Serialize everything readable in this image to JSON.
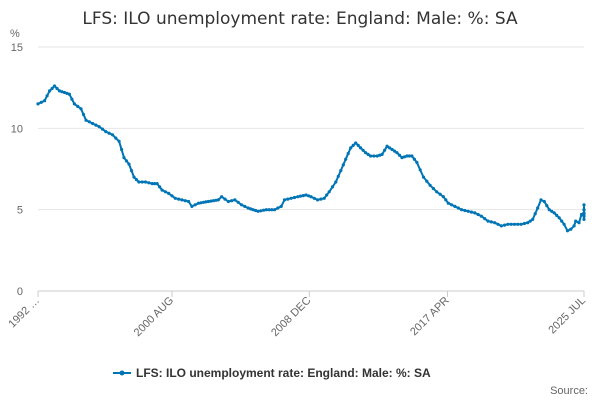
{
  "chart_data": {
    "type": "line",
    "title": "LFS: ILO unemployment rate: England: Male: %: SA",
    "unit_label": "%",
    "xlabel": "",
    "ylabel": "",
    "ylim": [
      0,
      15
    ],
    "y_ticks": [
      "0",
      "5",
      "10",
      "15"
    ],
    "x_tick_labels": [
      "1992 …",
      "2000 AUG",
      "2008 DEC",
      "2017 APR",
      "2025 JUL"
    ],
    "x_tick_values": [
      1992.5,
      2000.6,
      2008.9,
      2017.25,
      2025.5
    ],
    "xlim": [
      1992.5,
      2025.5
    ],
    "grid": true,
    "legend_position": "bottom",
    "color": "#0075b5",
    "series": [
      {
        "name": "LFS: ILO unemployment rate: England: Male: %: SA",
        "points": [
          [
            1992.5,
            11.5
          ],
          [
            1992.9,
            11.7
          ],
          [
            1993.2,
            12.3
          ],
          [
            1993.5,
            12.6
          ],
          [
            1993.8,
            12.3
          ],
          [
            1994.1,
            12.2
          ],
          [
            1994.4,
            12.1
          ],
          [
            1994.7,
            11.5
          ],
          [
            1995.1,
            11.2
          ],
          [
            1995.4,
            10.5
          ],
          [
            1995.8,
            10.3
          ],
          [
            1996.2,
            10.1
          ],
          [
            1996.6,
            9.8
          ],
          [
            1997.0,
            9.6
          ],
          [
            1997.4,
            9.2
          ],
          [
            1997.7,
            8.2
          ],
          [
            1998.0,
            7.8
          ],
          [
            1998.3,
            7.0
          ],
          [
            1998.6,
            6.7
          ],
          [
            1999.0,
            6.7
          ],
          [
            1999.4,
            6.6
          ],
          [
            1999.7,
            6.6
          ],
          [
            2000.0,
            6.2
          ],
          [
            2000.4,
            6.0
          ],
          [
            2000.8,
            5.7
          ],
          [
            2001.2,
            5.6
          ],
          [
            2001.6,
            5.5
          ],
          [
            2001.8,
            5.2
          ],
          [
            2002.2,
            5.4
          ],
          [
            2002.8,
            5.5
          ],
          [
            2003.4,
            5.6
          ],
          [
            2003.6,
            5.8
          ],
          [
            2004.0,
            5.5
          ],
          [
            2004.4,
            5.6
          ],
          [
            2004.8,
            5.3
          ],
          [
            2005.2,
            5.1
          ],
          [
            2005.8,
            4.9
          ],
          [
            2006.3,
            5.0
          ],
          [
            2006.8,
            5.0
          ],
          [
            2007.2,
            5.2
          ],
          [
            2007.4,
            5.6
          ],
          [
            2007.8,
            5.7
          ],
          [
            2008.2,
            5.8
          ],
          [
            2008.7,
            5.9
          ],
          [
            2009.0,
            5.8
          ],
          [
            2009.4,
            5.6
          ],
          [
            2009.8,
            5.7
          ],
          [
            2010.1,
            6.1
          ],
          [
            2010.5,
            6.7
          ],
          [
            2010.8,
            7.4
          ],
          [
            2011.1,
            8.1
          ],
          [
            2011.4,
            8.8
          ],
          [
            2011.7,
            9.1
          ],
          [
            2012.0,
            8.8
          ],
          [
            2012.3,
            8.5
          ],
          [
            2012.6,
            8.3
          ],
          [
            2013.0,
            8.3
          ],
          [
            2013.3,
            8.4
          ],
          [
            2013.6,
            8.9
          ],
          [
            2013.9,
            8.7
          ],
          [
            2014.2,
            8.5
          ],
          [
            2014.5,
            8.2
          ],
          [
            2014.8,
            8.3
          ],
          [
            2015.1,
            8.3
          ],
          [
            2015.4,
            7.9
          ],
          [
            2015.8,
            7.0
          ],
          [
            2016.2,
            6.5
          ],
          [
            2016.6,
            6.1
          ],
          [
            2017.0,
            5.8
          ],
          [
            2017.3,
            5.4
          ],
          [
            2017.7,
            5.2
          ],
          [
            2018.1,
            5.0
          ],
          [
            2018.5,
            4.9
          ],
          [
            2018.9,
            4.8
          ],
          [
            2019.3,
            4.6
          ],
          [
            2019.7,
            4.3
          ],
          [
            2020.1,
            4.2
          ],
          [
            2020.5,
            4.0
          ],
          [
            2020.9,
            4.1
          ],
          [
            2021.3,
            4.1
          ],
          [
            2021.7,
            4.1
          ],
          [
            2022.1,
            4.2
          ],
          [
            2022.4,
            4.4
          ],
          [
            2022.7,
            5.1
          ],
          [
            2022.9,
            5.6
          ],
          [
            2023.1,
            5.5
          ],
          [
            2023.4,
            5.0
          ],
          [
            2023.7,
            4.8
          ],
          [
            2024.0,
            4.5
          ],
          [
            2024.3,
            4.1
          ],
          [
            2024.5,
            3.7
          ],
          [
            2024.7,
            3.8
          ],
          [
            2024.9,
            4.0
          ],
          [
            2025.0,
            4.3
          ],
          [
            2025.2,
            4.2
          ],
          [
            2025.35,
            4.7
          ],
          [
            2025.5,
            4.8
          ],
          [
            2025.7,
            4.4
          ],
          [
            2025.85,
            4.6
          ],
          [
            2026.0,
            4.7
          ],
          [
            2026.2,
            4.6
          ],
          [
            2026.4,
            5.0
          ],
          [
            2026.55,
            5.0
          ],
          [
            2026.7,
            5.3
          ]
        ]
      }
    ],
    "source_label": "Source:"
  }
}
